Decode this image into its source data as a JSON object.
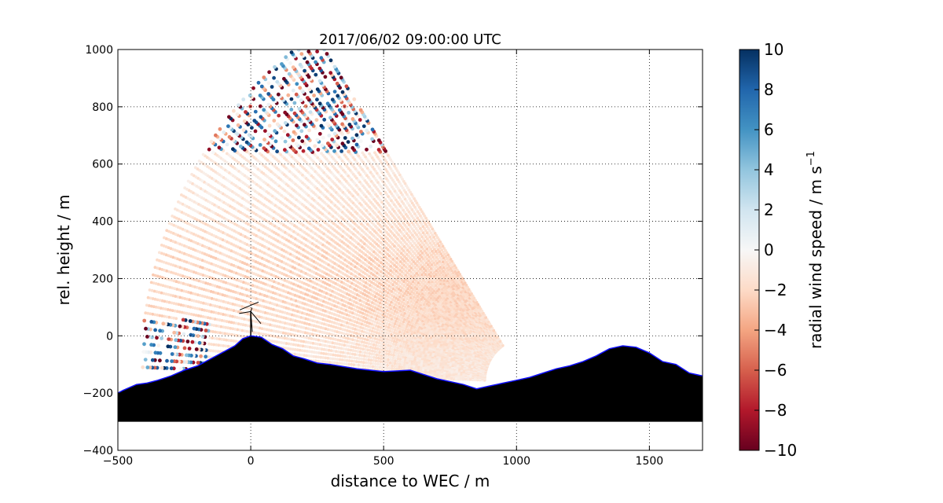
{
  "chart_data": {
    "type": "scatter",
    "title": "2017/06/02 09:00:00 UTC",
    "xlabel": "distance to WEC / m",
    "ylabel": "rel. height / m",
    "xlim": [
      -500,
      1700
    ],
    "ylim": [
      -400,
      1000
    ],
    "xticks": [
      -500,
      0,
      500,
      1000,
      1500
    ],
    "yticks": [
      -400,
      -200,
      0,
      200,
      400,
      600,
      800,
      1000
    ],
    "grid": true,
    "scan": {
      "origin": [
        1030,
        -160
      ],
      "angle_range_deg": [
        2,
        57
      ],
      "beam_count": 52,
      "range_max": 1450,
      "turbulent_above_height": 640
    },
    "turbine": {
      "x": 0,
      "hub_height": 85
    },
    "terrain": {
      "x": [
        -500,
        -480,
        -430,
        -390,
        -350,
        -300,
        -250,
        -200,
        -150,
        -100,
        -60,
        -30,
        0,
        40,
        80,
        120,
        160,
        200,
        250,
        300,
        400,
        500,
        600,
        700,
        800,
        850,
        900,
        950,
        1000,
        1050,
        1100,
        1150,
        1200,
        1250,
        1300,
        1350,
        1400,
        1450,
        1500,
        1550,
        1600,
        1650,
        1700
      ],
      "y": [
        -200,
        -190,
        -170,
        -165,
        -155,
        -140,
        -120,
        -105,
        -80,
        -55,
        -35,
        -10,
        0,
        -5,
        -30,
        -45,
        -70,
        -80,
        -95,
        -100,
        -115,
        -125,
        -120,
        -150,
        -170,
        -185,
        -175,
        -165,
        -155,
        -145,
        -130,
        -115,
        -105,
        -90,
        -70,
        -45,
        -35,
        -40,
        -60,
        -90,
        -100,
        -130,
        -140
      ]
    },
    "terrain_base": -300,
    "colorbar": {
      "label": "radial wind speed / m s",
      "label_superscript": "−1",
      "vmin": -10,
      "vmax": 10,
      "ticks": [
        10,
        8,
        6,
        4,
        2,
        0,
        -2,
        -4,
        -6,
        -8,
        -10
      ],
      "colormap": "RdBu",
      "colors": [
        "#67001f",
        "#b2182b",
        "#d6604d",
        "#f4a582",
        "#fddbc7",
        "#f7f7f7",
        "#d1e5f0",
        "#92c5de",
        "#4393c3",
        "#2166ac",
        "#053061"
      ]
    }
  }
}
